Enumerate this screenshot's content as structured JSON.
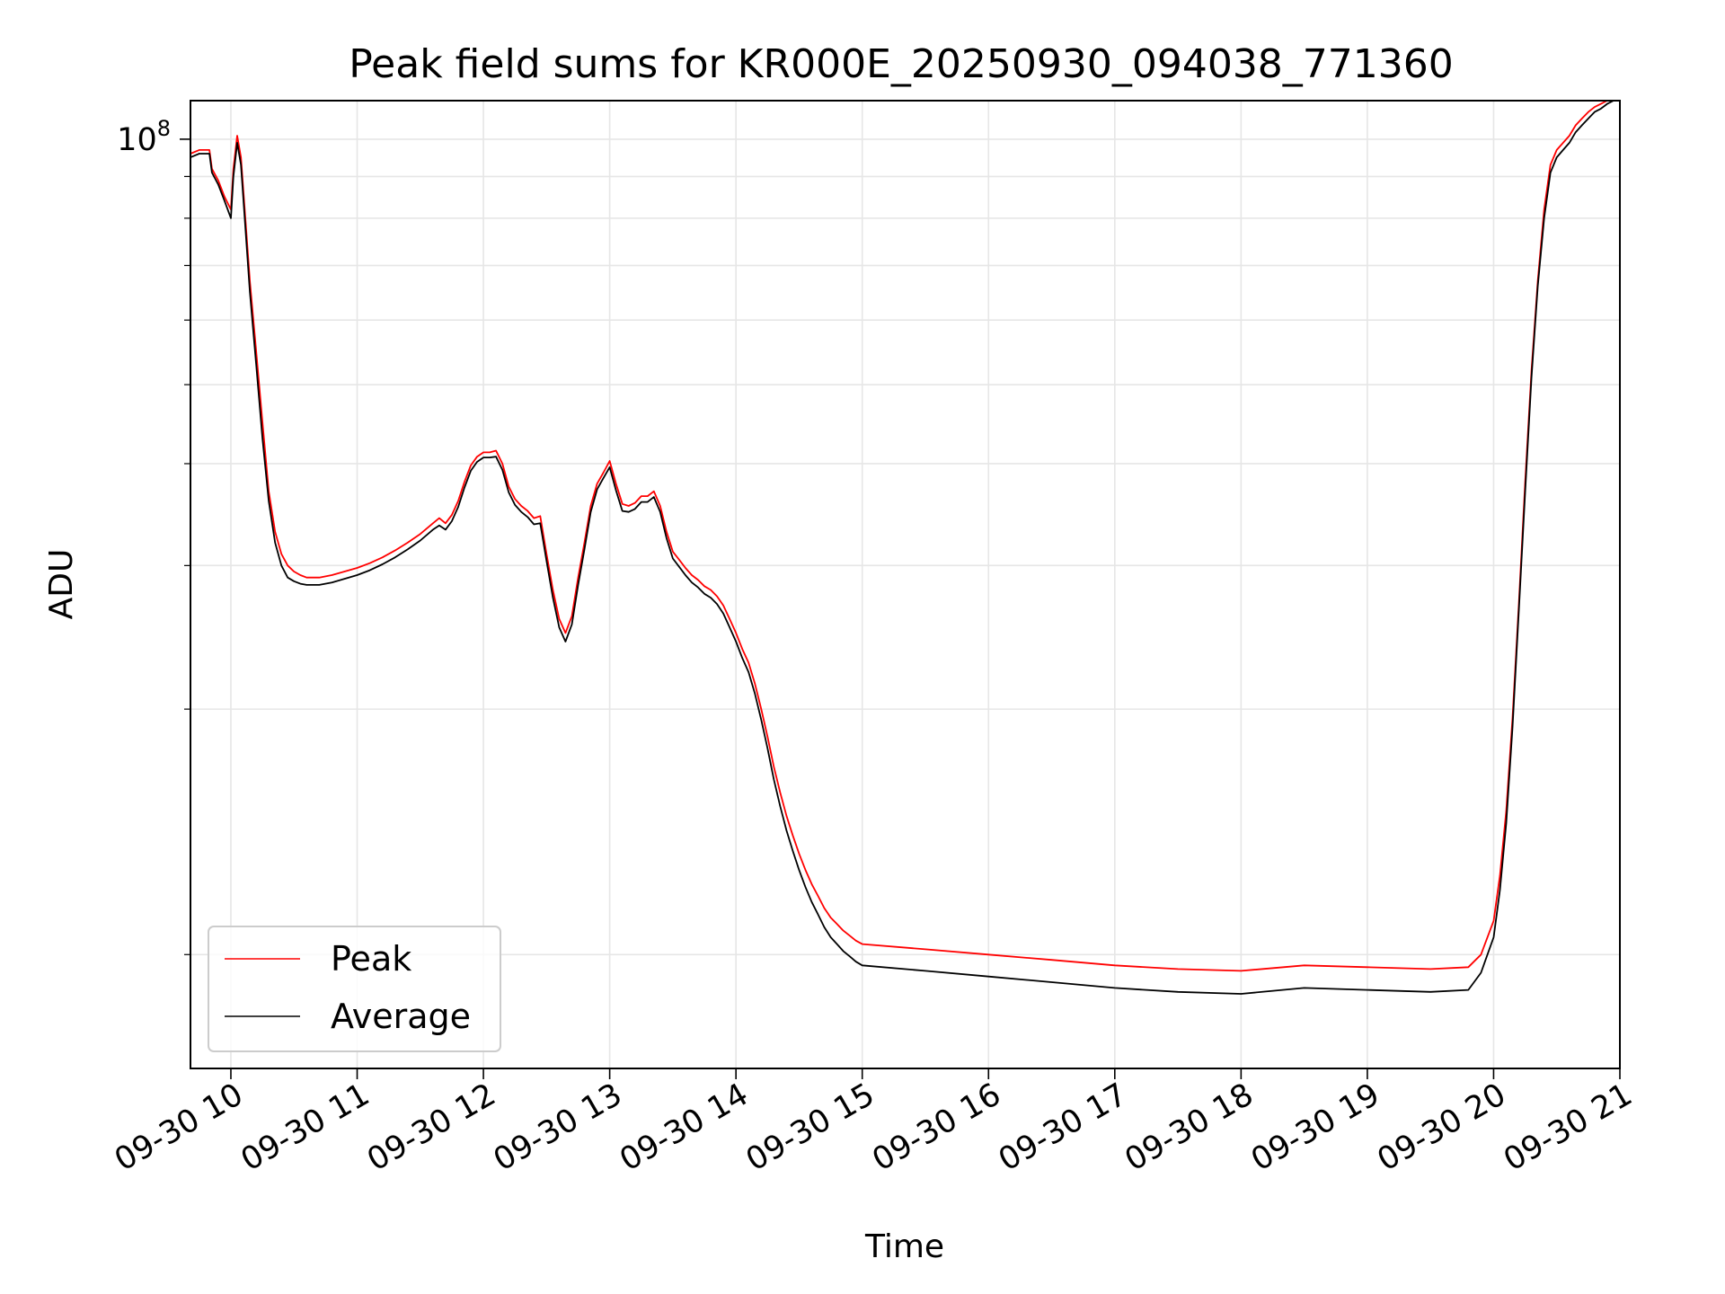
{
  "chart_data": {
    "type": "line",
    "title": "Peak field sums for KR000E_20250930_094038_771360",
    "xlabel": "Time",
    "ylabel": "ADU",
    "x_unit": "hours since 09-30 00:00",
    "xlim": [
      9.68,
      21.0
    ],
    "ylim": [
      7250000,
      111500000
    ],
    "yscale": "log",
    "grid": true,
    "legend_position": "lower-left",
    "x_ticks": [
      {
        "value": 10,
        "label": "09-30 10"
      },
      {
        "value": 11,
        "label": "09-30 11"
      },
      {
        "value": 12,
        "label": "09-30 12"
      },
      {
        "value": 13,
        "label": "09-30 13"
      },
      {
        "value": 14,
        "label": "09-30 14"
      },
      {
        "value": 15,
        "label": "09-30 15"
      },
      {
        "value": 16,
        "label": "09-30 16"
      },
      {
        "value": 17,
        "label": "09-30 17"
      },
      {
        "value": 18,
        "label": "09-30 18"
      },
      {
        "value": 19,
        "label": "09-30 19"
      },
      {
        "value": 20,
        "label": "09-30 20"
      },
      {
        "value": 21,
        "label": "09-30 21"
      }
    ],
    "y_major_ticks": [
      {
        "value": 100000000,
        "base": "10",
        "exp": "8"
      }
    ],
    "y_minor_ticks": [
      10000000,
      20000000,
      30000000,
      40000000,
      50000000,
      60000000,
      70000000,
      80000000,
      90000000
    ],
    "series": [
      {
        "name": "Peak",
        "color": "#ff0000",
        "x": [
          9.68,
          9.75,
          9.83,
          9.85,
          9.9,
          9.95,
          10.0,
          10.02,
          10.05,
          10.08,
          10.12,
          10.15,
          10.2,
          10.25,
          10.3,
          10.35,
          10.4,
          10.45,
          10.5,
          10.55,
          10.6,
          10.7,
          10.8,
          10.9,
          11.0,
          11.1,
          11.2,
          11.3,
          11.4,
          11.5,
          11.6,
          11.65,
          11.7,
          11.75,
          11.8,
          11.85,
          11.9,
          11.95,
          12.0,
          12.05,
          12.1,
          12.15,
          12.2,
          12.25,
          12.3,
          12.35,
          12.4,
          12.45,
          12.5,
          12.55,
          12.6,
          12.65,
          12.7,
          12.75,
          12.8,
          12.85,
          12.9,
          12.95,
          13.0,
          13.05,
          13.1,
          13.15,
          13.2,
          13.25,
          13.3,
          13.35,
          13.4,
          13.45,
          13.5,
          13.55,
          13.6,
          13.65,
          13.7,
          13.75,
          13.8,
          13.85,
          13.9,
          13.95,
          14.0,
          14.05,
          14.1,
          14.15,
          14.2,
          14.25,
          14.3,
          14.35,
          14.4,
          14.45,
          14.5,
          14.55,
          14.6,
          14.65,
          14.7,
          14.75,
          14.8,
          14.85,
          14.9,
          14.95,
          15.0,
          15.5,
          16.0,
          16.5,
          17.0,
          17.5,
          18.0,
          18.5,
          19.0,
          19.5,
          19.8,
          19.9,
          20.0,
          20.05,
          20.1,
          20.15,
          20.2,
          20.25,
          20.3,
          20.35,
          20.4,
          20.45,
          20.5,
          20.55,
          20.6,
          20.65,
          20.7,
          20.75,
          20.8,
          20.85,
          20.9,
          20.95,
          21.0
        ],
        "y": [
          96000000,
          97000000,
          97000000,
          92000000,
          89000000,
          85000000,
          82000000,
          92000000,
          101000000,
          95000000,
          78000000,
          67000000,
          55000000,
          45000000,
          37000000,
          33000000,
          31000000,
          30000000,
          29500000,
          29200000,
          29000000,
          29000000,
          29200000,
          29500000,
          29800000,
          30200000,
          30700000,
          31300000,
          32000000,
          32800000,
          33800000,
          34300000,
          33800000,
          34600000,
          36000000,
          38000000,
          39800000,
          40800000,
          41300000,
          41300000,
          41500000,
          40000000,
          37500000,
          36200000,
          35500000,
          35000000,
          34300000,
          34500000,
          31000000,
          28000000,
          25800000,
          24800000,
          26000000,
          29000000,
          32000000,
          35500000,
          37800000,
          39000000,
          40300000,
          37800000,
          35700000,
          35500000,
          35800000,
          36500000,
          36500000,
          37000000,
          35500000,
          33000000,
          31200000,
          30500000,
          29800000,
          29200000,
          28800000,
          28300000,
          28000000,
          27500000,
          26800000,
          25800000,
          24800000,
          23700000,
          22800000,
          21500000,
          20000000,
          18500000,
          17000000,
          15800000,
          14800000,
          14000000,
          13300000,
          12700000,
          12200000,
          11800000,
          11400000,
          11100000,
          10900000,
          10700000,
          10550000,
          10400000,
          10300000,
          10150000,
          10000000,
          9850000,
          9700000,
          9600000,
          9550000,
          9700000,
          9650000,
          9600000,
          9650000,
          10000000,
          11000000,
          12500000,
          15000000,
          19500000,
          27000000,
          38000000,
          52000000,
          67000000,
          82000000,
          93000000,
          97000000,
          99000000,
          101000000,
          104000000,
          106000000,
          108000000,
          109500000,
          110500000,
          111500000,
          112000000,
          112500000
        ]
      },
      {
        "name": "Average",
        "color": "#000000",
        "x": [
          9.68,
          9.75,
          9.83,
          9.85,
          9.9,
          9.95,
          10.0,
          10.02,
          10.05,
          10.08,
          10.12,
          10.15,
          10.2,
          10.25,
          10.3,
          10.35,
          10.4,
          10.45,
          10.5,
          10.55,
          10.6,
          10.7,
          10.8,
          10.9,
          11.0,
          11.1,
          11.2,
          11.3,
          11.4,
          11.5,
          11.6,
          11.65,
          11.7,
          11.75,
          11.8,
          11.85,
          11.9,
          11.95,
          12.0,
          12.05,
          12.1,
          12.15,
          12.2,
          12.25,
          12.3,
          12.35,
          12.4,
          12.45,
          12.5,
          12.55,
          12.6,
          12.65,
          12.7,
          12.75,
          12.8,
          12.85,
          12.9,
          12.95,
          13.0,
          13.05,
          13.1,
          13.15,
          13.2,
          13.25,
          13.3,
          13.35,
          13.4,
          13.45,
          13.5,
          13.55,
          13.6,
          13.65,
          13.7,
          13.75,
          13.8,
          13.85,
          13.9,
          13.95,
          14.0,
          14.05,
          14.1,
          14.15,
          14.2,
          14.25,
          14.3,
          14.35,
          14.4,
          14.45,
          14.5,
          14.55,
          14.6,
          14.65,
          14.7,
          14.75,
          14.8,
          14.85,
          14.9,
          14.95,
          15.0,
          15.5,
          16.0,
          16.5,
          17.0,
          17.5,
          18.0,
          18.5,
          19.0,
          19.5,
          19.8,
          19.9,
          20.0,
          20.05,
          20.1,
          20.15,
          20.2,
          20.25,
          20.3,
          20.35,
          20.4,
          20.45,
          20.5,
          20.55,
          20.6,
          20.65,
          20.7,
          20.75,
          20.8,
          20.85,
          20.9,
          20.95,
          21.0
        ],
        "y": [
          95000000,
          96000000,
          96000000,
          91000000,
          88000000,
          84000000,
          80000000,
          90000000,
          99000000,
          93000000,
          76000000,
          65000000,
          53000000,
          43000000,
          36000000,
          32000000,
          30000000,
          29000000,
          28700000,
          28500000,
          28400000,
          28400000,
          28600000,
          28900000,
          29200000,
          29600000,
          30100000,
          30700000,
          31400000,
          32200000,
          33200000,
          33600000,
          33200000,
          34000000,
          35400000,
          37400000,
          39200000,
          40200000,
          40700000,
          40700000,
          40800000,
          39300000,
          36900000,
          35600000,
          34900000,
          34400000,
          33700000,
          33800000,
          30400000,
          27400000,
          25200000,
          24200000,
          25400000,
          28400000,
          31400000,
          34900000,
          37200000,
          38400000,
          39600000,
          37100000,
          35000000,
          34900000,
          35200000,
          35900000,
          35900000,
          36400000,
          34900000,
          32400000,
          30600000,
          29900000,
          29200000,
          28600000,
          28200000,
          27700000,
          27400000,
          26900000,
          26200000,
          25200000,
          24200000,
          23100000,
          22200000,
          20900000,
          19400000,
          17900000,
          16400000,
          15200000,
          14200000,
          13400000,
          12700000,
          12100000,
          11600000,
          11200000,
          10800000,
          10500000,
          10300000,
          10100000,
          9950000,
          9800000,
          9700000,
          9550000,
          9400000,
          9250000,
          9100000,
          9000000,
          8950000,
          9100000,
          9050000,
          9000000,
          9050000,
          9500000,
          10500000,
          12000000,
          14500000,
          19000000,
          26500000,
          37000000,
          51000000,
          66000000,
          80000000,
          91000000,
          95000000,
          97000000,
          99000000,
          102000000,
          104000000,
          106000000,
          108000000,
          109000000,
          110500000,
          111500000,
          112000000
        ]
      }
    ]
  }
}
